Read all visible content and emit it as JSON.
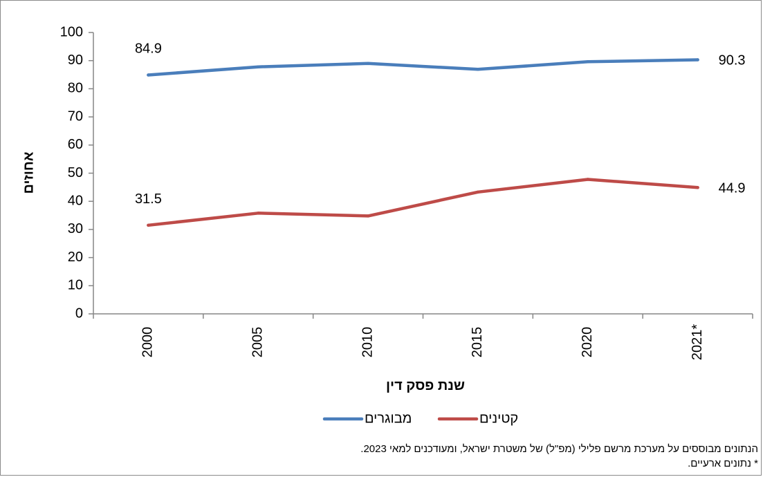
{
  "chart_data": {
    "type": "line",
    "categories": [
      "2000",
      "2005",
      "2010",
      "2015",
      "2020",
      "2021*"
    ],
    "series": [
      {
        "name": "מבוגרים",
        "color": "#4a7ebb",
        "values": [
          84.9,
          87.8,
          89.0,
          86.9,
          89.6,
          90.3
        ],
        "labeled": {
          "first": "84.9",
          "last": "90.3"
        }
      },
      {
        "name": "קטינים",
        "color": "#be4b48",
        "values": [
          31.5,
          35.8,
          34.8,
          43.3,
          47.8,
          44.9
        ],
        "labeled": {
          "first": "31.5",
          "last": "44.9"
        }
      }
    ],
    "title": "",
    "xlabel": "שנת פסק דין",
    "ylabel": "אחוזים",
    "ylim": [
      0,
      100
    ],
    "yticks": [
      "0",
      "10",
      "20",
      "30",
      "40",
      "50",
      "60",
      "70",
      "80",
      "90",
      "100"
    ],
    "grid": false,
    "legend_position": "bottom"
  },
  "notes": {
    "line1": "הנתונים מבוססים על מערכת מרשם פלילי (מפ\"ל) של משטרת ישראל, ומעודכנים למאי 2023.",
    "line2": "* נתונים ארעיים."
  }
}
